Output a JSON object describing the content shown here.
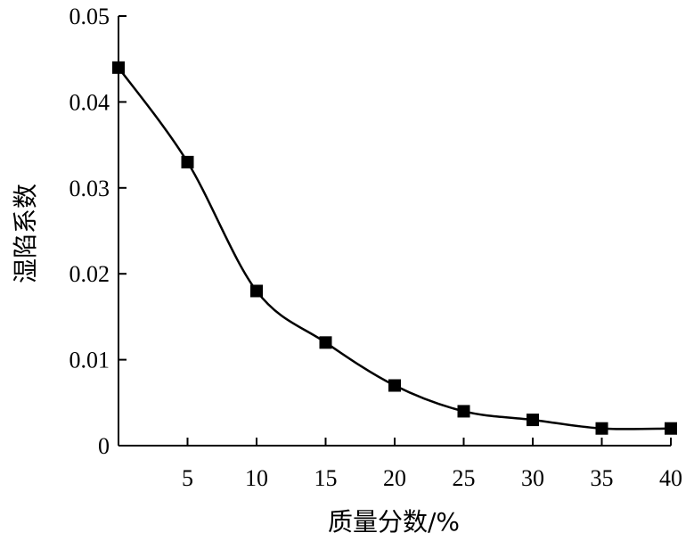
{
  "chart_data": {
    "type": "line",
    "title": "",
    "xlabel": "质量分数/%",
    "ylabel": "湿陷系数",
    "x": [
      0,
      5,
      10,
      15,
      20,
      25,
      30,
      35,
      40
    ],
    "series": [
      {
        "name": "",
        "values": [
          0.044,
          0.033,
          0.018,
          0.012,
          0.007,
          0.004,
          0.003,
          0.002,
          0.002
        ]
      }
    ],
    "xlim": [
      0,
      40
    ],
    "ylim": [
      0,
      0.05
    ],
    "xticks": [
      "5",
      "10",
      "15",
      "20",
      "25",
      "30",
      "35",
      "40"
    ],
    "yticks": [
      "0",
      "0.01",
      "0.02",
      "0.03",
      "0.04",
      "0.05"
    ],
    "grid": false,
    "marker": "square",
    "smooth": true,
    "line_color": "#000000"
  }
}
